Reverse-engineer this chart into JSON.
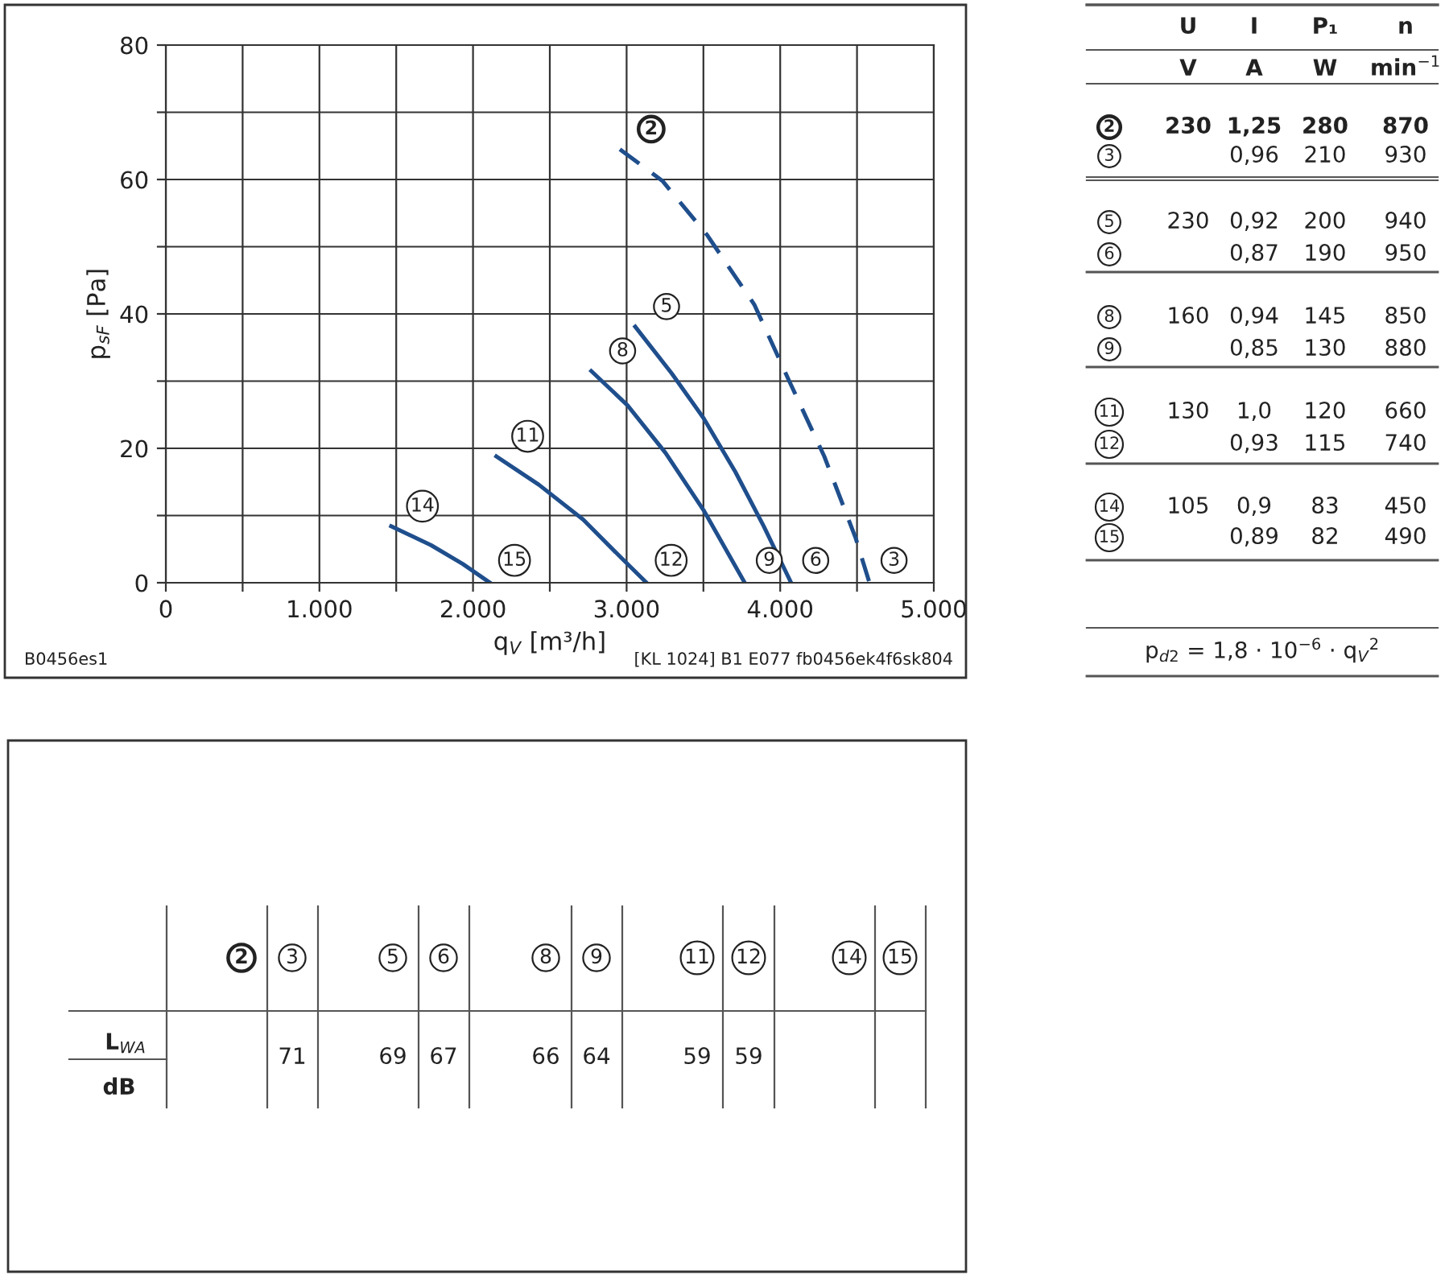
{
  "chart_data": [
    {
      "type": "line",
      "xlabel": "q$_{V}$ [m³/h]",
      "ylabel": "p$_{sF}$ [Pa]",
      "xlim": [
        0,
        5000
      ],
      "ylim": [
        0,
        80
      ],
      "xticks": [
        0,
        {
          "value": 500,
          "label": null
        },
        {
          "value": 1000,
          "label": "1.000"
        },
        {
          "value": 1500,
          "label": null
        },
        {
          "value": 2000,
          "label": "2.000"
        },
        {
          "value": 2500,
          "label": null
        },
        {
          "value": 3000,
          "label": "3.000"
        },
        {
          "value": 3500,
          "label": null
        },
        {
          "value": 4000,
          "label": "4.000"
        },
        {
          "value": 4500,
          "label": null
        },
        {
          "value": 5000,
          "label": "5.000"
        }
      ],
      "yticks": [
        0,
        {
          "value": 10,
          "label": null
        },
        20,
        {
          "value": 30,
          "label": null
        },
        40,
        {
          "value": 50,
          "label": null
        },
        60,
        {
          "value": 70,
          "label": null
        },
        80
      ],
      "grid": true,
      "series": [
        {
          "color": "#1f4e8c",
          "line_style": "dashed",
          "x": [
            2956,
            3233,
            3522,
            3831,
            4057,
            4287,
            4492,
            4581
          ],
          "values": [
            64.5,
            59.8,
            51.8,
            41.4,
            30.1,
            18.8,
            6.6,
            0
          ]
        },
        {
          "color": "#1f4e8c",
          "line_style": "solid",
          "x": [
            3056,
            3295,
            3501,
            3708,
            3893,
            4071
          ],
          "values": [
            38.1,
            31.1,
            24.5,
            16.5,
            8.4,
            0
          ]
        },
        {
          "color": "#1f4e8c",
          "line_style": "solid",
          "x": [
            2770,
            3006,
            3254,
            3501,
            3769
          ],
          "values": [
            31.5,
            26.4,
            19.3,
            10.8,
            0
          ]
        },
        {
          "color": "#1f4e8c",
          "line_style": "solid",
          "x": [
            2152,
            2428,
            2717,
            2965,
            3130
          ],
          "values": [
            18.8,
            14.6,
            9.4,
            3.7,
            0
          ]
        },
        {
          "color": "#1f4e8c",
          "line_style": "solid",
          "x": [
            1467,
            1726,
            1933,
            2110
          ],
          "values": [
            8.4,
            5.6,
            2.8,
            0
          ]
        }
      ],
      "annotations": [
        "2",
        "3",
        "5",
        "6",
        "8",
        "9",
        "11",
        "12",
        "14",
        "15",
        "B0456es1",
        "[KL 1024] B1 E077 fb0456ek4f6sk804"
      ]
    },
    {
      "type": "other",
      "categories": [
        "2",
        "3",
        "5",
        "6",
        "8",
        "9",
        "11",
        "12",
        "14",
        "15"
      ],
      "series": [
        {
          "name": "U",
          "values": [
            230,
            null,
            230,
            null,
            160,
            null,
            130,
            null,
            105,
            null
          ],
          "value_labels": [
            "230",
            null,
            "230",
            null,
            "160",
            null,
            "130",
            null,
            "105",
            null
          ]
        },
        {
          "name": "I",
          "values": [
            1.25,
            0.96,
            0.92,
            0.87,
            0.94,
            0.85,
            1.0,
            0.93,
            0.9,
            0.89
          ],
          "value_labels": [
            "1,25",
            "0,96",
            "0,92",
            "0,87",
            "0,94",
            "0,85",
            "1,0",
            "0,93",
            "0,9",
            "0,89"
          ]
        },
        {
          "name": "P₁",
          "values": [
            280,
            210,
            200,
            190,
            145,
            130,
            120,
            115,
            83,
            82
          ],
          "value_labels": [
            "280",
            "210",
            "200",
            "190",
            "145",
            "130",
            "120",
            "115",
            "83",
            "82"
          ]
        },
        {
          "name": "n",
          "values": [
            870,
            930,
            940,
            950,
            850,
            880,
            660,
            740,
            450,
            490
          ],
          "value_labels": [
            "870",
            "930",
            "940",
            "950",
            "850",
            "880",
            "660",
            "740",
            "450",
            "490"
          ]
        }
      ],
      "annotations": [
        "V",
        "A",
        "W",
        "min$^{−1}$",
        "p$_{d2}$ = 1,8 · 10$^{−6}$ · q$_{V}$$^{2}$"
      ]
    },
    {
      "type": "other",
      "categories": [
        "2",
        "3",
        "5",
        "6",
        "8",
        "9",
        "11",
        "12",
        "14",
        "15"
      ],
      "values": [
        null,
        71,
        69,
        67,
        66,
        64,
        59,
        59,
        null,
        null
      ],
      "data_labels": true,
      "annotations": [
        "L$_{WA}$",
        "dB"
      ]
    }
  ]
}
